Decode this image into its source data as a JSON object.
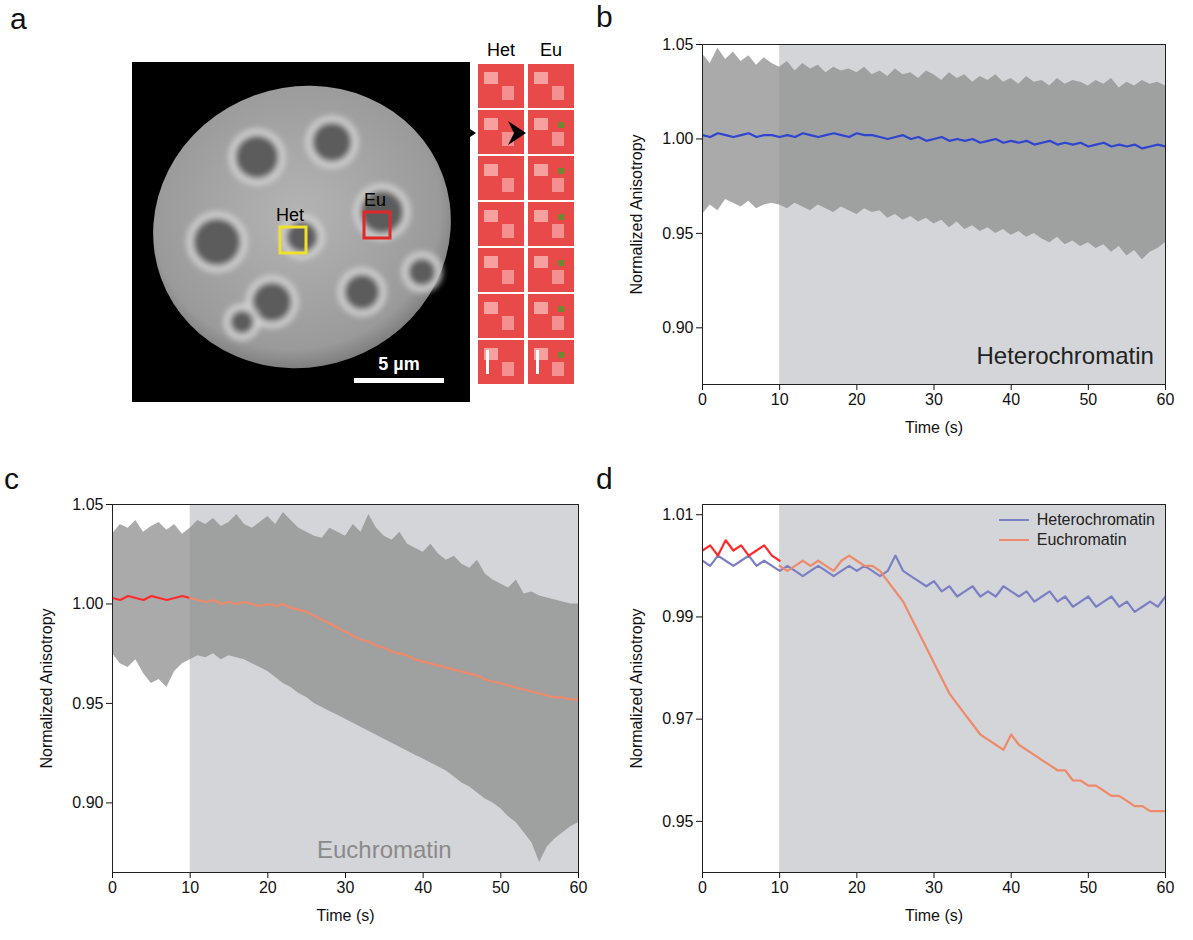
{
  "chart_data": [
    {
      "type": "image",
      "panel_label": "a",
      "regions": [
        {
          "label": "Het",
          "color": "#f0e030"
        },
        {
          "label": "Eu",
          "color": "#e02828"
        }
      ],
      "scale_bar": "5 µm",
      "strips": [
        "Het",
        "Eu"
      ]
    },
    {
      "type": "line",
      "panel_label": "b",
      "xlabel": "Time (s)",
      "ylabel": "Normalized Anisotropy",
      "xlim": [
        0,
        60
      ],
      "xticks": [
        0,
        10,
        20,
        30,
        40,
        50,
        60
      ],
      "ylim": [
        0.87,
        1.05
      ],
      "yticks": [
        {
          "value": 0.9,
          "label": "0.90"
        },
        0.95,
        {
          "value": 1,
          "label": "1.00"
        },
        1.05
      ],
      "shaded": {
        "x": [
          10,
          60
        ],
        "color": "#d4d5d8"
      },
      "annotations": [
        {
          "text": "Heterochromatin",
          "x": 47,
          "y": 0.885,
          "color": "#222222"
        }
      ],
      "x": [
        0,
        1,
        2,
        3,
        4,
        5,
        6,
        7,
        8,
        9,
        10,
        11,
        12,
        13,
        14,
        15,
        16,
        17,
        18,
        19,
        20,
        21,
        22,
        23,
        24,
        25,
        26,
        27,
        28,
        29,
        30,
        31,
        32,
        33,
        34,
        35,
        36,
        37,
        38,
        39,
        40,
        41,
        42,
        43,
        44,
        45,
        46,
        47,
        48,
        49,
        50,
        51,
        52,
        53,
        54,
        55,
        56,
        57,
        58,
        59,
        60
      ],
      "band": {
        "color": "#8e8e8e",
        "low": [
          0.96,
          0.965,
          0.962,
          0.968,
          0.966,
          0.964,
          0.967,
          0.963,
          0.965,
          0.966,
          0.965,
          0.963,
          0.966,
          0.964,
          0.962,
          0.965,
          0.963,
          0.961,
          0.964,
          0.962,
          0.96,
          0.963,
          0.961,
          0.962,
          0.958,
          0.96,
          0.957,
          0.959,
          0.956,
          0.958,
          0.955,
          0.957,
          0.953,
          0.956,
          0.952,
          0.954,
          0.951,
          0.953,
          0.95,
          0.952,
          0.949,
          0.951,
          0.948,
          0.95,
          0.947,
          0.945,
          0.948,
          0.944,
          0.946,
          0.943,
          0.945,
          0.942,
          0.944,
          0.94,
          0.943,
          0.938,
          0.941,
          0.936,
          0.94,
          0.942,
          0.945
        ],
        "high": [
          1.045,
          1.04,
          1.048,
          1.042,
          1.046,
          1.041,
          1.044,
          1.039,
          1.043,
          1.04,
          1.038,
          1.041,
          1.036,
          1.04,
          1.037,
          1.039,
          1.035,
          1.038,
          1.036,
          1.037,
          1.035,
          1.038,
          1.034,
          1.036,
          1.033,
          1.037,
          1.034,
          1.035,
          1.032,
          1.036,
          1.034,
          1.031,
          1.035,
          1.032,
          1.034,
          1.03,
          1.033,
          1.031,
          1.034,
          1.03,
          1.032,
          1.029,
          1.033,
          1.03,
          1.031,
          1.028,
          1.032,
          1.029,
          1.031,
          1.03,
          1.028,
          1.031,
          1.029,
          1.032,
          1.027,
          1.03,
          1.028,
          1.031,
          1.029,
          1.03,
          1.028
        ]
      },
      "series": [
        {
          "color": "#2f45d0",
          "values": [
            1.002,
            1.001,
            1.003,
            1.002,
            1.001,
            1.002,
            1.003,
            1.001,
            1.002,
            1.002,
            1.001,
            1.002,
            1.001,
            1.003,
            1.002,
            1.001,
            1.002,
            1.003,
            1.002,
            1.001,
            1.003,
            1.002,
            1.002,
            1.001,
            1.0,
            1.001,
            1.002,
            1.0,
            1.001,
            0.999,
            1.0,
            1.001,
            0.999,
            1.0,
            0.999,
            1.0,
            0.998,
            0.999,
            1.0,
            0.998,
            0.999,
            0.998,
            0.999,
            0.997,
            0.998,
            0.999,
            0.997,
            0.998,
            0.997,
            0.998,
            0.996,
            0.997,
            0.998,
            0.996,
            0.997,
            0.996,
            0.997,
            0.995,
            0.996,
            0.997,
            0.996
          ]
        }
      ]
    },
    {
      "type": "line",
      "panel_label": "c",
      "xlabel": "Time (s)",
      "ylabel": "Normalized Anisotropy",
      "xlim": [
        0,
        60
      ],
      "xticks": [
        0,
        10,
        20,
        30,
        40,
        50,
        60
      ],
      "ylim": [
        0.865,
        1.05
      ],
      "yticks": [
        {
          "value": 0.9,
          "label": "0.90"
        },
        0.95,
        {
          "value": 1,
          "label": "1.00"
        },
        1.05
      ],
      "shaded": {
        "x": [
          10,
          60
        ],
        "color": "#d4d5d8"
      },
      "annotations": [
        {
          "text": "Euchromatin",
          "x": 35,
          "y": 0.876,
          "color": "#8a8a8a"
        }
      ],
      "x": [
        0,
        1,
        2,
        3,
        4,
        5,
        6,
        7,
        8,
        9,
        10,
        11,
        12,
        13,
        14,
        15,
        16,
        17,
        18,
        19,
        20,
        21,
        22,
        23,
        24,
        25,
        26,
        27,
        28,
        29,
        30,
        31,
        32,
        33,
        34,
        35,
        36,
        37,
        38,
        39,
        40,
        41,
        42,
        43,
        44,
        45,
        46,
        47,
        48,
        49,
        50,
        51,
        52,
        53,
        54,
        55,
        56,
        57,
        58,
        59,
        60
      ],
      "band": {
        "color": "#8e8e8e",
        "low": [
          0.975,
          0.97,
          0.968,
          0.972,
          0.965,
          0.96,
          0.962,
          0.958,
          0.966,
          0.97,
          0.972,
          0.974,
          0.973,
          0.975,
          0.972,
          0.974,
          0.973,
          0.972,
          0.97,
          0.968,
          0.966,
          0.963,
          0.96,
          0.958,
          0.955,
          0.953,
          0.95,
          0.948,
          0.946,
          0.944,
          0.942,
          0.94,
          0.938,
          0.936,
          0.934,
          0.932,
          0.93,
          0.928,
          0.926,
          0.924,
          0.922,
          0.92,
          0.918,
          0.916,
          0.913,
          0.91,
          0.908,
          0.905,
          0.902,
          0.9,
          0.897,
          0.893,
          0.89,
          0.885,
          0.88,
          0.87,
          0.878,
          0.882,
          0.885,
          0.888,
          0.89
        ],
        "high": [
          1.035,
          1.04,
          1.038,
          1.042,
          1.036,
          1.039,
          1.041,
          1.037,
          1.04,
          1.035,
          1.038,
          1.042,
          1.04,
          1.043,
          1.039,
          1.041,
          1.045,
          1.04,
          1.038,
          1.041,
          1.044,
          1.04,
          1.046,
          1.042,
          1.038,
          1.036,
          1.034,
          1.033,
          1.038,
          1.036,
          1.034,
          1.04,
          1.036,
          1.045,
          1.038,
          1.034,
          1.032,
          1.036,
          1.03,
          1.028,
          1.026,
          1.03,
          1.025,
          1.022,
          1.024,
          1.02,
          1.018,
          1.022,
          1.015,
          1.012,
          1.01,
          1.008,
          1.012,
          1.005,
          1.006,
          1.004,
          1.003,
          1.002,
          1.001,
          1.0,
          1.0
        ]
      },
      "series": [
        {
          "color": "#ff2a2a",
          "values": [
            1.003,
            1.002,
            1.004,
            1.003,
            1.002,
            1.004,
            1.003,
            1.002,
            1.003,
            1.004,
            1.003,
            null,
            null,
            null,
            null,
            null,
            null,
            null,
            null,
            null,
            null,
            null,
            null,
            null,
            null,
            null,
            null,
            null,
            null,
            null,
            null,
            null,
            null,
            null,
            null,
            null,
            null,
            null,
            null,
            null,
            null,
            null,
            null,
            null,
            null,
            null,
            null,
            null,
            null,
            null,
            null,
            null,
            null,
            null,
            null,
            null,
            null,
            null,
            null,
            null,
            null
          ]
        },
        {
          "color": "#ee8a6a",
          "values": [
            null,
            null,
            null,
            null,
            null,
            null,
            null,
            null,
            null,
            null,
            1.003,
            1.002,
            1.001,
            1.002,
            1.0,
            1.001,
            1.0,
            1.001,
            1.0,
            0.999,
            1.0,
            0.999,
            1.0,
            0.998,
            0.997,
            0.996,
            0.994,
            0.992,
            0.99,
            0.988,
            0.986,
            0.984,
            0.982,
            0.981,
            0.979,
            0.978,
            0.976,
            0.975,
            0.974,
            0.972,
            0.971,
            0.97,
            0.969,
            0.968,
            0.967,
            0.966,
            0.965,
            0.964,
            0.962,
            0.961,
            0.96,
            0.959,
            0.958,
            0.957,
            0.956,
            0.955,
            0.954,
            0.953,
            0.953,
            0.952,
            0.952
          ]
        }
      ]
    },
    {
      "type": "line",
      "panel_label": "d",
      "xlabel": "Time (s)",
      "ylabel": "Normalized Anisotropy",
      "xlim": [
        0,
        60
      ],
      "xticks": [
        0,
        10,
        20,
        30,
        40,
        50,
        60
      ],
      "ylim": [
        0.94,
        1.012
      ],
      "yticks": [
        0.95,
        0.97,
        0.99,
        1.01
      ],
      "shaded": {
        "x": [
          10,
          60
        ],
        "color": "#d4d5d8"
      },
      "legend": "top-right",
      "x": [
        0,
        1,
        2,
        3,
        4,
        5,
        6,
        7,
        8,
        9,
        10,
        11,
        12,
        13,
        14,
        15,
        16,
        17,
        18,
        19,
        20,
        21,
        22,
        23,
        24,
        25,
        26,
        27,
        28,
        29,
        30,
        31,
        32,
        33,
        34,
        35,
        36,
        37,
        38,
        39,
        40,
        41,
        42,
        43,
        44,
        45,
        46,
        47,
        48,
        49,
        50,
        51,
        52,
        53,
        54,
        55,
        56,
        57,
        58,
        59,
        60
      ],
      "series": [
        {
          "name": "Heterochromatin",
          "color": "#7b80c4",
          "values": [
            1.001,
            1.0,
            1.002,
            1.001,
            1.0,
            1.001,
            1.002,
            1.0,
            1.001,
            1.0,
            0.999,
            1.0,
            0.999,
            0.998,
            0.999,
            1.0,
            0.999,
            0.998,
            0.999,
            1.0,
            0.999,
            1.0,
            0.999,
            0.998,
            0.999,
            1.002,
            0.999,
            0.998,
            0.997,
            0.996,
            0.997,
            0.995,
            0.996,
            0.994,
            0.995,
            0.996,
            0.994,
            0.995,
            0.994,
            0.996,
            0.995,
            0.994,
            0.995,
            0.993,
            0.994,
            0.995,
            0.993,
            0.994,
            0.992,
            0.993,
            0.994,
            0.992,
            0.993,
            0.994,
            0.992,
            0.993,
            0.991,
            0.992,
            0.993,
            0.992,
            0.994
          ]
        },
        {
          "color": "#ff2a2a",
          "values": [
            1.003,
            1.004,
            1.002,
            1.005,
            1.003,
            1.004,
            1.002,
            1.003,
            1.004,
            1.002,
            1.001,
            null,
            null,
            null,
            null,
            null,
            null,
            null,
            null,
            null,
            null,
            null,
            null,
            null,
            null,
            null,
            null,
            null,
            null,
            null,
            null,
            null,
            null,
            null,
            null,
            null,
            null,
            null,
            null,
            null,
            null,
            null,
            null,
            null,
            null,
            null,
            null,
            null,
            null,
            null,
            null,
            null,
            null,
            null,
            null,
            null,
            null,
            null,
            null,
            null,
            null
          ]
        },
        {
          "name": "Euchromatin",
          "color": "#ee8a6a",
          "values": [
            null,
            null,
            null,
            null,
            null,
            null,
            null,
            null,
            null,
            null,
            1.0,
            0.999,
            1.0,
            1.001,
            1.0,
            1.001,
            1.0,
            0.999,
            1.001,
            1.002,
            1.001,
            1.0,
            1.0,
            0.999,
            0.997,
            0.995,
            0.993,
            0.99,
            0.987,
            0.984,
            0.981,
            0.978,
            0.975,
            0.973,
            0.971,
            0.969,
            0.967,
            0.966,
            0.965,
            0.964,
            0.967,
            0.965,
            0.964,
            0.963,
            0.962,
            0.961,
            0.96,
            0.96,
            0.958,
            0.958,
            0.957,
            0.957,
            0.956,
            0.955,
            0.955,
            0.954,
            0.953,
            0.953,
            0.952,
            0.952,
            0.952
          ]
        }
      ]
    }
  ]
}
